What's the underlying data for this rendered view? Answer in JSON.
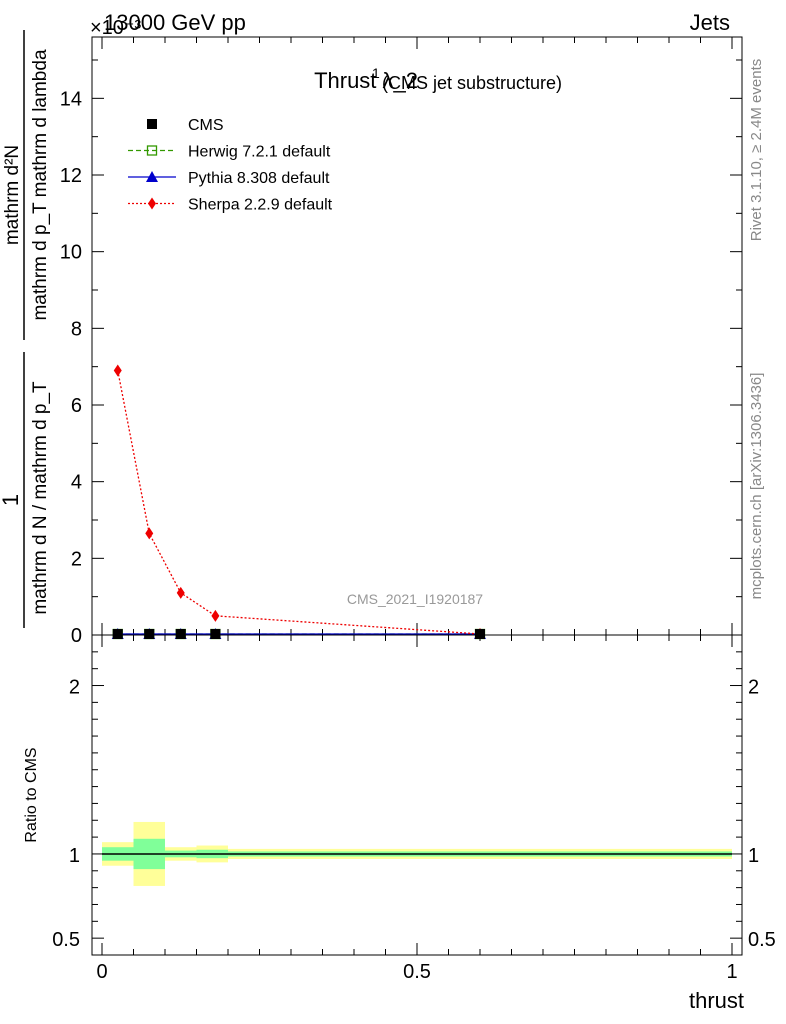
{
  "header": {
    "left": "13000 GeV pp",
    "right": "Jets",
    "exponent": "×10⁻³"
  },
  "side_labels": {
    "rivet": "Rivet 3.1.10, ≥ 2.4M events",
    "mcplots": "mcplots.cern.ch [arXiv:1306.3436]"
  },
  "chart_data": [
    {
      "type": "line",
      "title": "Thrust λ_2",
      "title_superscript": "1",
      "subtitle": "(CMS jet substructure)",
      "watermark": "CMS_2021_I1920187",
      "ylabel_numerator": "mathrm d²N",
      "ylabel_denominator": "mathrm d p_T mathrm d lambda",
      "ylabel_prefix_num": "1",
      "ylabel_prefix_den": "mathrm d N / mathrm d p_T",
      "xlim": [
        0,
        1
      ],
      "ylim": [
        0,
        15.6
      ],
      "y_scale_factor": "1e-3",
      "yticks": [
        0,
        2,
        4,
        6,
        8,
        10,
        12,
        14
      ],
      "ytick_labels": [
        "0",
        "2",
        "4",
        "6",
        "8",
        "10",
        "12",
        "14"
      ],
      "legend_position": "top-left",
      "series": [
        {
          "name": "CMS",
          "style": "data",
          "color": "#000000",
          "marker": "square",
          "x": [
            0.025,
            0.075,
            0.125,
            0.18,
            0.6
          ],
          "y": [
            0.02,
            0.02,
            0.02,
            0.02,
            0.01
          ]
        },
        {
          "name": "Herwig 7.2.1 default",
          "style": "dashed",
          "color": "#339900",
          "marker": "open-square",
          "x": [
            0.025,
            0.075,
            0.125,
            0.18,
            0.6
          ],
          "y": [
            0.02,
            0.02,
            0.02,
            0.02,
            0.01
          ]
        },
        {
          "name": "Pythia 8.308 default",
          "style": "solid",
          "color": "#0000cc",
          "marker": "triangle",
          "x": [
            0.025,
            0.075,
            0.125,
            0.18,
            0.6
          ],
          "y": [
            0.02,
            0.02,
            0.02,
            0.02,
            0.01
          ]
        },
        {
          "name": "Sherpa 2.2.9 default",
          "style": "dotted",
          "color": "#ee0000",
          "marker": "diamond",
          "x": [
            0.025,
            0.075,
            0.125,
            0.18,
            0.6
          ],
          "y": [
            6.9,
            2.65,
            1.1,
            0.5,
            0.01
          ]
        }
      ]
    },
    {
      "type": "area",
      "ylabel": "Ratio to CMS",
      "xlabel": "thrust",
      "xlim": [
        0,
        1
      ],
      "ylim": [
        0.4,
        2.3
      ],
      "xticks": [
        0,
        0.5,
        1
      ],
      "xtick_labels": [
        "0",
        "0.5",
        "1"
      ],
      "yticks": [
        0.5,
        1,
        2
      ],
      "ytick_labels": [
        "0.5",
        "1",
        "2"
      ],
      "reference_line": 1,
      "bins": [
        {
          "x0": 0.0,
          "x1": 0.05,
          "yellow": [
            0.93,
            1.07
          ],
          "green": [
            0.96,
            1.04
          ]
        },
        {
          "x0": 0.05,
          "x1": 0.1,
          "yellow": [
            0.81,
            1.19
          ],
          "green": [
            0.91,
            1.09
          ]
        },
        {
          "x0": 0.1,
          "x1": 0.15,
          "yellow": [
            0.96,
            1.04
          ],
          "green": [
            0.98,
            1.02
          ]
        },
        {
          "x0": 0.15,
          "x1": 0.2,
          "yellow": [
            0.95,
            1.05
          ],
          "green": [
            0.975,
            1.025
          ]
        },
        {
          "x0": 0.2,
          "x1": 1.0,
          "yellow": [
            0.97,
            1.03
          ],
          "green": [
            0.985,
            1.015
          ]
        }
      ],
      "colors": {
        "yellow": "#ffff99",
        "green": "#80ff99"
      }
    }
  ]
}
